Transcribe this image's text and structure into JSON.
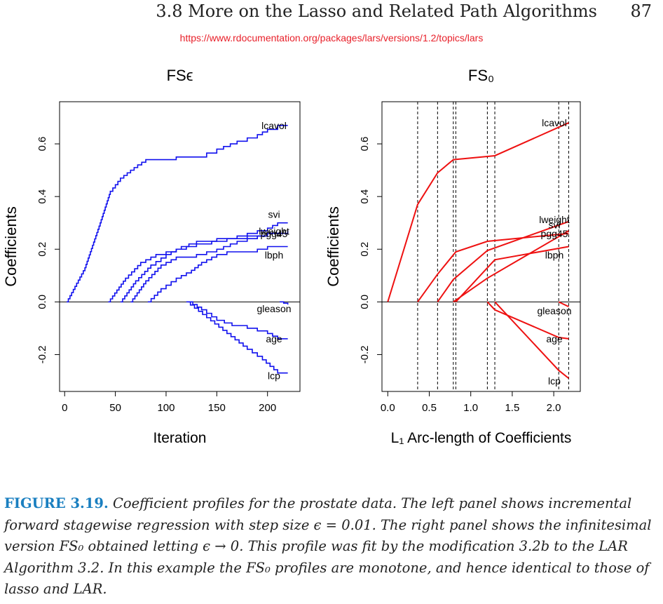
{
  "running_head": {
    "title": "3.8 More on the Lasso and Related Path Algorithms",
    "page_number": "87"
  },
  "source_url": "https://www.rdocumentation.org/packages/lars/versions/1.2/topics/lars",
  "caption": {
    "label": "FIGURE 3.19.",
    "text": "Coefficient profiles for the prostate data. The left panel shows incremental forward stagewise regression with step size ϵ = 0.01. The right panel shows the infinitesimal version FS₀ obtained letting ϵ → 0. This profile was fit by the modification 3.2b to the LAR Algorithm 3.2. In this example the FS₀ profiles are monotone, and hence identical to those of lasso and LAR."
  },
  "colors": {
    "left_series": "#1010ee",
    "right_series": "#ee1111",
    "axis": "#000000",
    "caption_label": "#1a7fc0"
  },
  "chart_data": [
    {
      "type": "line",
      "title": "FSϵ",
      "xlabel": "Iteration",
      "ylabel": "Coefficients",
      "xlim": [
        -5,
        232
      ],
      "ylim": [
        -0.34,
        0.76
      ],
      "x_ticks": [
        "0",
        "50",
        "100",
        "150",
        "200"
      ],
      "y_ticks": [
        "-0.2",
        "0.0",
        "0.2",
        "0.4",
        "0.6"
      ],
      "step_lines": true,
      "zero_line": true,
      "series": [
        {
          "name": "lcavol",
          "points": [
            [
              2,
              0
            ],
            [
              20,
              0.13
            ],
            [
              35,
              0.3
            ],
            [
              45,
              0.42
            ],
            [
              55,
              0.47
            ],
            [
              65,
              0.5
            ],
            [
              72,
              0.52
            ],
            [
              80,
              0.54
            ],
            [
              100,
              0.54
            ],
            [
              110,
              0.55
            ],
            [
              130,
              0.55
            ],
            [
              150,
              0.58
            ],
            [
              170,
              0.61
            ],
            [
              190,
              0.635
            ],
            [
              200,
              0.655
            ],
            [
              210,
              0.67
            ],
            [
              220,
              0.67
            ]
          ]
        },
        {
          "name": "svi",
          "points": [
            [
              43,
              0
            ],
            [
              60,
              0.09
            ],
            [
              75,
              0.15
            ],
            [
              90,
              0.18
            ],
            [
              110,
              0.2
            ],
            [
              130,
              0.22
            ],
            [
              160,
              0.24
            ],
            [
              180,
              0.26
            ],
            [
              200,
              0.28
            ],
            [
              210,
              0.3
            ],
            [
              220,
              0.3
            ]
          ]
        },
        {
          "name": "lweight",
          "points": [
            [
              55,
              0
            ],
            [
              70,
              0.08
            ],
            [
              85,
              0.14
            ],
            [
              100,
              0.18
            ],
            [
              115,
              0.21
            ],
            [
              130,
              0.23
            ],
            [
              150,
              0.24
            ],
            [
              180,
              0.25
            ],
            [
              200,
              0.26
            ],
            [
              220,
              0.26
            ]
          ]
        },
        {
          "name": "pgg45",
          "points": [
            [
              65,
              0
            ],
            [
              80,
              0.08
            ],
            [
              95,
              0.14
            ],
            [
              110,
              0.17
            ],
            [
              130,
              0.18
            ],
            [
              150,
              0.2
            ],
            [
              170,
              0.23
            ],
            [
              190,
              0.25
            ],
            [
              200,
              0.26
            ],
            [
              210,
              0.26
            ],
            [
              220,
              0.27
            ]
          ]
        },
        {
          "name": "lbph",
          "points": [
            [
              82,
              0
            ],
            [
              95,
              0.05
            ],
            [
              110,
              0.09
            ],
            [
              125,
              0.12
            ],
            [
              135,
              0.15
            ],
            [
              150,
              0.18
            ],
            [
              160,
              0.19
            ],
            [
              190,
              0.2
            ],
            [
              200,
              0.21
            ],
            [
              220,
              0.21
            ]
          ]
        },
        {
          "name": "gleason",
          "points": [
            [
              212,
              0
            ],
            [
              216,
              -0.005
            ],
            [
              220,
              -0.01
            ]
          ]
        },
        {
          "name": "age",
          "points": [
            [
              122,
              0
            ],
            [
              135,
              -0.03
            ],
            [
              150,
              -0.07
            ],
            [
              165,
              -0.09
            ],
            [
              180,
              -0.1
            ],
            [
              200,
              -0.12
            ],
            [
              210,
              -0.14
            ],
            [
              220,
              -0.14
            ]
          ]
        },
        {
          "name": "lcp",
          "points": [
            [
              120,
              0
            ],
            [
              140,
              -0.06
            ],
            [
              160,
              -0.12
            ],
            [
              180,
              -0.18
            ],
            [
              195,
              -0.22
            ],
            [
              210,
              -0.27
            ],
            [
              220,
              -0.27
            ]
          ]
        }
      ]
    },
    {
      "type": "line",
      "title": "FS₀",
      "xlabel": "L₁ Arc-length of Coefficients",
      "ylabel": "Coefficients",
      "xlim": [
        -0.07,
        2.32
      ],
      "ylim": [
        -0.34,
        0.76
      ],
      "x_ticks": [
        "0.0",
        "0.5",
        "1.0",
        "1.5",
        "2.0"
      ],
      "y_ticks": [
        "-0.2",
        "0.0",
        "0.2",
        "0.4",
        "0.6"
      ],
      "breakpoints": [
        0.36,
        0.6,
        0.79,
        0.82,
        1.2,
        1.29,
        2.06,
        2.18
      ],
      "zero_line": true,
      "series": [
        {
          "name": "lcavol",
          "points": [
            [
              0,
              0
            ],
            [
              0.36,
              0.37
            ],
            [
              0.6,
              0.49
            ],
            [
              0.79,
              0.54
            ],
            [
              1.29,
              0.555
            ],
            [
              2.18,
              0.68
            ]
          ]
        },
        {
          "name": "svi",
          "points": [
            [
              0.36,
              0
            ],
            [
              0.6,
              0.105
            ],
            [
              0.82,
              0.19
            ],
            [
              1.2,
              0.23
            ],
            [
              2.18,
              0.26
            ]
          ]
        },
        {
          "name": "lweight",
          "points": [
            [
              0.6,
              0
            ],
            [
              0.79,
              0.085
            ],
            [
              1.2,
              0.195
            ],
            [
              2.18,
              0.305
            ]
          ]
        },
        {
          "name": "pgg45",
          "points": [
            [
              0.79,
              0
            ],
            [
              1.2,
              0.09
            ],
            [
              2.18,
              0.27
            ]
          ]
        },
        {
          "name": "lbph",
          "points": [
            [
              0.82,
              0
            ],
            [
              1.29,
              0.16
            ],
            [
              2.18,
              0.21
            ]
          ]
        },
        {
          "name": "gleason",
          "points": [
            [
              2.06,
              0
            ],
            [
              2.18,
              -0.018
            ]
          ]
        },
        {
          "name": "age",
          "points": [
            [
              1.2,
              0
            ],
            [
              1.29,
              -0.03
            ],
            [
              2.06,
              -0.135
            ],
            [
              2.18,
              -0.14
            ]
          ]
        },
        {
          "name": "lcp",
          "points": [
            [
              1.29,
              0
            ],
            [
              2.06,
              -0.26
            ],
            [
              2.18,
              -0.29
            ]
          ]
        }
      ]
    }
  ]
}
